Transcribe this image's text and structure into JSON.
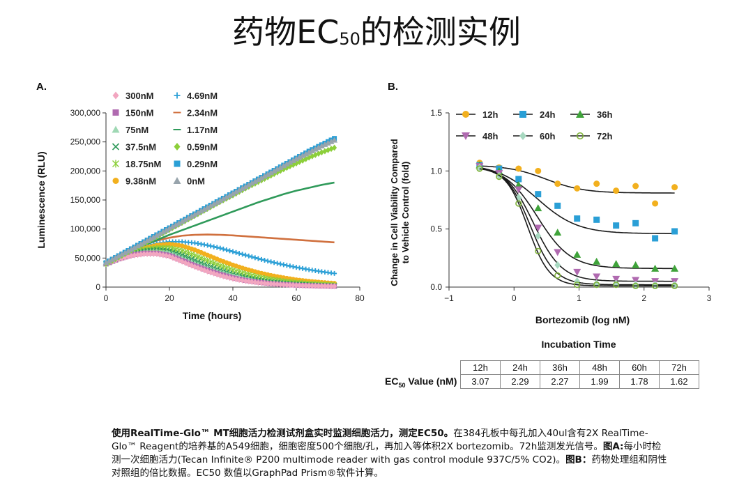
{
  "page": {
    "title_main": "药物EC",
    "title_sub": "50",
    "title_tail": "的检测实例"
  },
  "chart_data": [
    {
      "panel": "A.",
      "type": "line",
      "xlabel": "Time (hours)",
      "ylabel": "Luminescence (RLU)",
      "xlim": [
        0,
        80
      ],
      "ylim": [
        0,
        300000
      ],
      "xticks": [
        0,
        20,
        40,
        60,
        80
      ],
      "yticks": [
        0,
        50000,
        100000,
        150000,
        200000,
        250000,
        300000
      ],
      "ytick_labels": [
        "0",
        "50,000",
        "100,000",
        "150,000",
        "200,000",
        "250,000",
        "300,000"
      ],
      "x": [
        0,
        4,
        8,
        12,
        16,
        20,
        24,
        28,
        32,
        36,
        40,
        44,
        48,
        52,
        56,
        60,
        64,
        68,
        72
      ],
      "legend_placement": "top-left",
      "series": [
        {
          "name": "300nM",
          "marker": "diamond",
          "color": "#f2a6c0",
          "values": [
            40000,
            48000,
            54000,
            57000,
            57000,
            53000,
            44000,
            35000,
            27000,
            20000,
            14500,
            10500,
            7500,
            5500,
            4000,
            3000,
            2200,
            1700,
            1300
          ]
        },
        {
          "name": "150nM",
          "marker": "square",
          "color": "#b06ab0",
          "values": [
            40000,
            48500,
            55000,
            58500,
            58500,
            54500,
            46000,
            37000,
            29000,
            22000,
            16000,
            11500,
            8500,
            6000,
            4500,
            3300,
            2500,
            1900,
            1500
          ]
        },
        {
          "name": "75nM",
          "marker": "triangle",
          "color": "#9fd8b4",
          "values": [
            40000,
            49000,
            56000,
            60000,
            61000,
            58000,
            50000,
            41000,
            32500,
            25000,
            18500,
            13500,
            9800,
            7200,
            5300,
            3900,
            2900,
            2200,
            1700
          ]
        },
        {
          "name": "37.5nM",
          "marker": "x",
          "color": "#2f9a5a",
          "values": [
            40000,
            49500,
            57000,
            62000,
            64000,
            62000,
            55000,
            46000,
            37000,
            29000,
            22000,
            16500,
            12000,
            8800,
            6500,
            4800,
            3600,
            2700,
            2000
          ]
        },
        {
          "name": "18.75nM",
          "marker": "asterisk",
          "color": "#8ccf3a",
          "values": [
            40000,
            50000,
            58000,
            64000,
            67000,
            67000,
            62000,
            54000,
            45000,
            36500,
            29000,
            22500,
            17000,
            13000,
            9800,
            7400,
            5600,
            4300,
            3300
          ]
        },
        {
          "name": "9.38nM",
          "marker": "circle",
          "color": "#f2b01e",
          "values": [
            40000,
            50500,
            60000,
            67000,
            72000,
            74000,
            71000,
            64000,
            55000,
            46000,
            38000,
            31000,
            25000,
            20000,
            16000,
            12500,
            10000,
            8000,
            6500
          ]
        },
        {
          "name": "4.69nM",
          "marker": "plus",
          "color": "#2a9fd6",
          "values": [
            40000,
            52000,
            62000,
            70000,
            75000,
            78000,
            78000,
            76000,
            72000,
            67000,
            61000,
            55000,
            49000,
            43500,
            38500,
            34000,
            30000,
            26500,
            23500
          ]
        },
        {
          "name": "2.34nM",
          "marker": "dash",
          "color": "#d0703e",
          "values": [
            40000,
            53000,
            64000,
            73000,
            80000,
            85000,
            88500,
            90000,
            90500,
            90000,
            89000,
            87500,
            86000,
            84500,
            83000,
            81500,
            80000,
            78500,
            77000
          ]
        },
        {
          "name": "1.17nM",
          "marker": "dash",
          "color": "#2f9a5a",
          "values": [
            40000,
            51000,
            62000,
            72000,
            81000,
            90000,
            98000,
            106000,
            114000,
            122000,
            130000,
            138000,
            146000,
            153000,
            160000,
            166000,
            171000,
            176000,
            180000
          ]
        },
        {
          "name": "0.59nM",
          "marker": "diamond",
          "color": "#8ccf3a",
          "values": [
            40000,
            51000,
            63000,
            75000,
            87000,
            99000,
            111000,
            123000,
            135000,
            147000,
            158000,
            170000,
            181000,
            192000,
            203000,
            213000,
            223000,
            232000,
            240000
          ]
        },
        {
          "name": "0.29nM",
          "marker": "square",
          "color": "#2a9fd6",
          "values": [
            42000,
            54000,
            66000,
            78000,
            90000,
            102000,
            114000,
            126000,
            138000,
            150000,
            162000,
            174000,
            186000,
            198000,
            210000,
            222000,
            234000,
            245000,
            256000
          ]
        },
        {
          "name": "0nM",
          "marker": "triangle",
          "color": "#98a4ac",
          "values": [
            42000,
            53500,
            65000,
            77000,
            89000,
            101000,
            113000,
            125000,
            137000,
            149000,
            161000,
            173000,
            185000,
            197000,
            209000,
            221000,
            232000,
            243000,
            253000
          ]
        }
      ]
    },
    {
      "panel": "B.",
      "type": "scatter",
      "xlabel": "Bortezomib (log nM)",
      "ylabel_line1": "Change in Cell Viability Compared",
      "ylabel_line2": "to Vehicle Control (fold)",
      "xlim": [
        -1,
        3
      ],
      "ylim": [
        0,
        1.5
      ],
      "xticks": [
        -1,
        0,
        1,
        2,
        3
      ],
      "xtick_labels": [
        "−1",
        "0",
        "1",
        "2",
        "3"
      ],
      "yticks": [
        0,
        0.5,
        1.0,
        1.5
      ],
      "ytick_labels": [
        "0.0",
        "0.5",
        "1.0",
        "1.5"
      ],
      "x": [
        -0.53,
        -0.23,
        0.07,
        0.37,
        0.67,
        0.97,
        1.27,
        1.57,
        1.87,
        2.17,
        2.47
      ],
      "legend_placement": "top-right",
      "series": [
        {
          "name": "12h",
          "marker": "circle",
          "color": "#f2b01e",
          "values": [
            1.07,
            1.03,
            1.02,
            1.0,
            0.89,
            0.85,
            0.89,
            0.83,
            0.87,
            0.72,
            0.86
          ],
          "fit": {
            "top": 1.05,
            "bottom": 0.81,
            "log_ec50": 0.49,
            "hill": 1.5
          }
        },
        {
          "name": "24h",
          "marker": "square",
          "color": "#2a9fd6",
          "values": [
            1.05,
            1.02,
            0.93,
            0.8,
            0.7,
            0.59,
            0.58,
            0.53,
            0.55,
            0.42,
            0.48
          ],
          "fit": {
            "top": 1.06,
            "bottom": 0.46,
            "log_ec50": 0.36,
            "hill": 1.4
          }
        },
        {
          "name": "36h",
          "marker": "triangle",
          "color": "#3fa33a",
          "values": [
            1.05,
            1.0,
            0.88,
            0.68,
            0.47,
            0.28,
            0.22,
            0.2,
            0.19,
            0.16,
            0.16
          ],
          "fit": {
            "top": 1.05,
            "bottom": 0.16,
            "log_ec50": 0.36,
            "hill": 1.7
          }
        },
        {
          "name": "48h",
          "marker": "triangle-down",
          "color": "#b06ab0",
          "values": [
            1.04,
            0.98,
            0.84,
            0.51,
            0.3,
            0.13,
            0.09,
            0.07,
            0.06,
            0.05,
            0.05
          ],
          "fit": {
            "top": 1.05,
            "bottom": 0.05,
            "log_ec50": 0.3,
            "hill": 2.0
          }
        },
        {
          "name": "60h",
          "marker": "diamond",
          "color": "#a7d8c0",
          "values": [
            1.03,
            0.96,
            0.77,
            0.44,
            0.19,
            0.05,
            0.03,
            0.03,
            0.02,
            0.02,
            0.02
          ],
          "fit": {
            "top": 1.04,
            "bottom": 0.02,
            "log_ec50": 0.25,
            "hill": 2.3
          }
        },
        {
          "name": "72h",
          "marker": "open-circle",
          "color": "#7fb23a",
          "values": [
            1.02,
            0.95,
            0.72,
            0.31,
            0.1,
            0.02,
            0.02,
            0.02,
            0.01,
            0.01,
            0.01
          ],
          "fit": {
            "top": 1.03,
            "bottom": 0.01,
            "log_ec50": 0.21,
            "hill": 2.6
          }
        }
      ]
    }
  ],
  "ec50_table": {
    "title": "Incubation Time",
    "row_label_main": "EC",
    "row_label_sub": "50",
    "row_label_tail": " Value (nM)",
    "headers": [
      "12h",
      "24h",
      "36h",
      "48h",
      "60h",
      "72h"
    ],
    "values": [
      "3.07",
      "2.29",
      "2.27",
      "1.99",
      "1.78",
      "1.62"
    ]
  },
  "caption": {
    "bold_intro": "使用RealTime-Glo™ MT细胞活力检测试剂盒实时监测细胞活力，测定EC50。",
    "text1": "在384孔板中每孔加入40ul含有2X RealTime-Glo™ Reagent的培养基的A549细胞，细胞密度500个细胞/孔，再加入等体积2X bortezomib。72h监测发光信号。",
    "bold_a": "图A:",
    "text2": "每小时检测一次细胞活力(Tecan Infinite® P200 multimode reader with gas control module 937C/5% CO2)。",
    "bold_b": "图B：",
    "text3": "药物处理组和阴性对照组的倍比数据。EC50 数值以GraphPad Prism®软件计算。"
  }
}
